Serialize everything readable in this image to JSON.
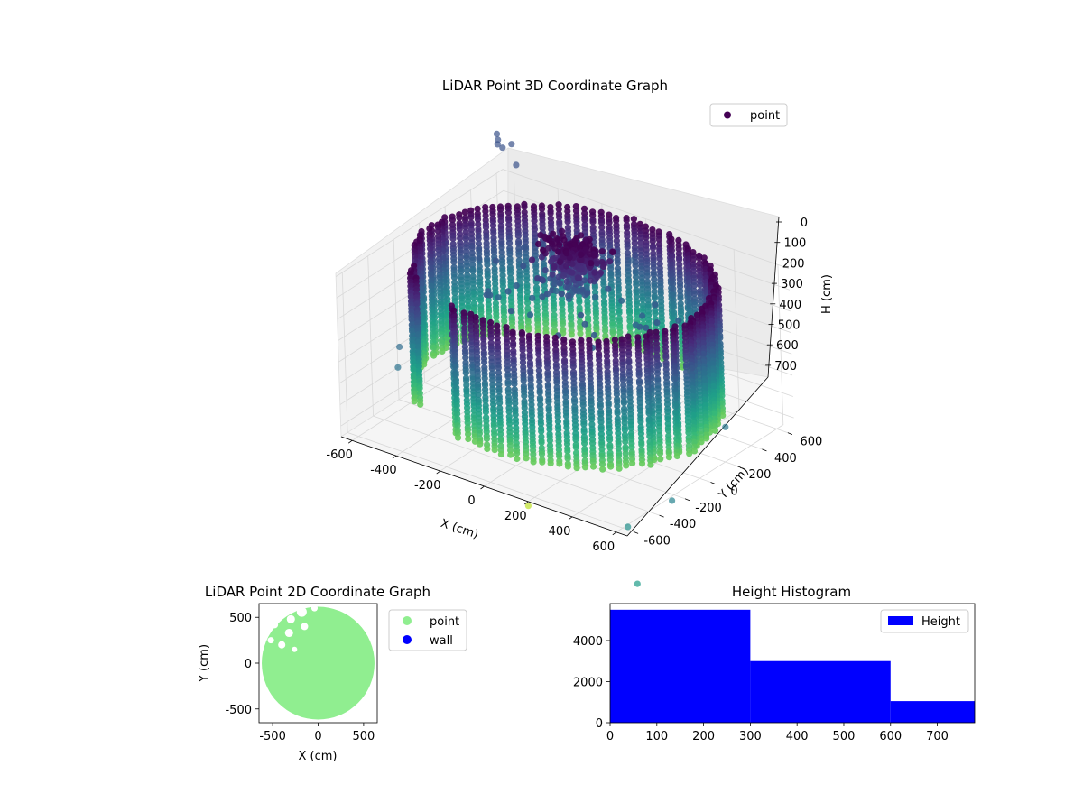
{
  "chart_data": [
    {
      "type": "scatter",
      "projection": "3d",
      "title": "LiDAR Point 3D Coordinate Graph",
      "xlabel": "X (cm)",
      "ylabel": "Y (cm)",
      "zlabel": "H (cm)",
      "xlim": [
        -650,
        650
      ],
      "ylim": [
        -650,
        650
      ],
      "zlim": [
        0,
        750
      ],
      "z_inverted": true,
      "xticks": [
        "-600",
        "-400",
        "-200",
        "0",
        "200",
        "400",
        "600"
      ],
      "yticks": [
        "-600",
        "-400",
        "-200",
        "0",
        "200",
        "400",
        "600"
      ],
      "zticks": [
        "0",
        "100",
        "200",
        "300",
        "400",
        "500",
        "600",
        "700"
      ],
      "colormap": "viridis",
      "legend": {
        "entries": [
          "point"
        ],
        "placement": "top-right"
      },
      "structure": {
        "wall_radius_cm": 600,
        "wall_height_cm": [
          0,
          600
        ],
        "wall_gaps_deg": [
          [
            200,
            215
          ],
          [
            230,
            250
          ]
        ],
        "center_cluster": {
          "x": -100,
          "y": 250,
          "h": [
            0,
            300
          ]
        }
      },
      "outliers": [
        {
          "x": -650,
          "y": 620,
          "h": -150,
          "c": 0.25
        },
        {
          "x": -660,
          "y": 630,
          "h": -170,
          "c": 0.25
        },
        {
          "x": -640,
          "y": 600,
          "h": -140,
          "c": 0.25
        },
        {
          "x": -600,
          "y": 640,
          "h": -140,
          "c": 0.25
        },
        {
          "x": -630,
          "y": 620,
          "h": -120,
          "c": 0.25
        },
        {
          "x": -570,
          "y": 620,
          "h": -60,
          "c": 0.25
        },
        {
          "x": 50,
          "y": 450,
          "h": 100,
          "c": 0.3
        },
        {
          "x": 690,
          "y": 60,
          "h": 500,
          "c": 0.4
        },
        {
          "x": 650,
          "y": -300,
          "h": 720,
          "c": 0.45
        },
        {
          "x": 600,
          "y": -560,
          "h": 760,
          "c": 0.5
        },
        {
          "x": 200,
          "y": -650,
          "h": 770,
          "c": 0.9
        },
        {
          "x": 750,
          "y": -750,
          "h": 900,
          "c": 0.55
        },
        {
          "x": -700,
          "y": -100,
          "h": 560,
          "c": 0.35
        },
        {
          "x": -650,
          "y": -200,
          "h": 600,
          "c": 0.38
        }
      ]
    },
    {
      "type": "scatter",
      "title": "LiDAR Point 2D Coordinate Graph",
      "xlabel": "X (cm)",
      "ylabel": "Y (cm)",
      "xlim": [
        -650,
        650
      ],
      "ylim": [
        -650,
        650
      ],
      "xticks": [
        "-500",
        "0",
        "500"
      ],
      "yticks": [
        "-500",
        "0",
        "500"
      ],
      "legend": {
        "entries": [
          "point",
          "wall"
        ],
        "placement": "outside-right",
        "colors": [
          "#90ee90",
          "#0000ff"
        ]
      },
      "series": [
        {
          "name": "point",
          "color": "#90ee90",
          "region": {
            "center": [
              0,
              0
            ],
            "radius": 620
          }
        },
        {
          "name": "wall",
          "color": "#0000ff",
          "values": []
        }
      ]
    },
    {
      "type": "bar",
      "title": "Height Histogram",
      "legend": {
        "entries": [
          "Height"
        ],
        "placement": "top-right"
      },
      "color": "#0000ff",
      "bins": [
        [
          0,
          300
        ],
        [
          300,
          600
        ],
        [
          600,
          780
        ]
      ],
      "values": [
        5500,
        3000,
        1050
      ],
      "xlim": [
        0,
        780
      ],
      "ylim": [
        0,
        5800
      ],
      "xticks": [
        "0",
        "100",
        "200",
        "300",
        "400",
        "500",
        "600",
        "700"
      ],
      "yticks": [
        "0",
        "2000",
        "4000"
      ]
    }
  ]
}
